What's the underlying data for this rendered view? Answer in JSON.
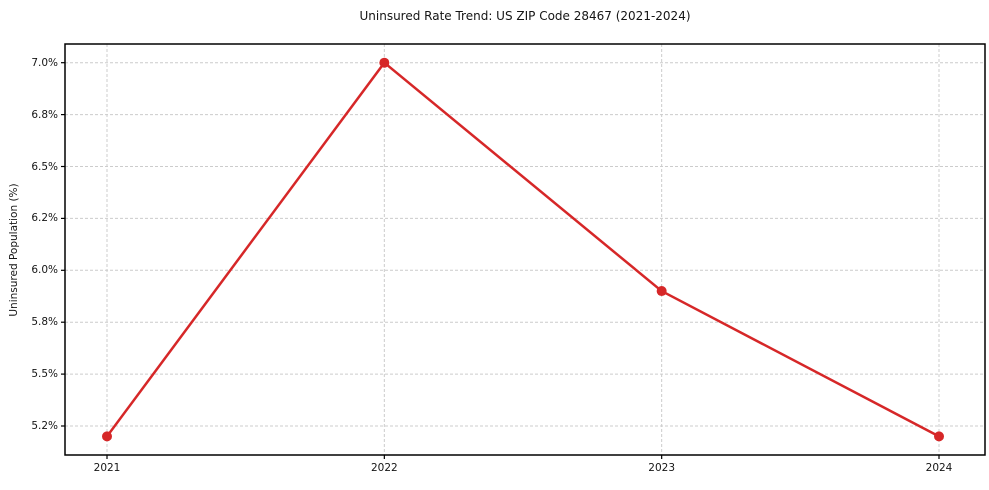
{
  "chart_data": {
    "type": "line",
    "title": "Uninsured Rate Trend: US ZIP Code 28467 (2021-2024)",
    "xlabel": "",
    "ylabel": "Uninsured Population (%)",
    "categories": [
      "2021",
      "2022",
      "2023",
      "2024"
    ],
    "values": [
      5.14,
      7.0,
      5.92,
      5.14
    ],
    "y_ticks": {
      "labels": [
        "5.2%",
        "5.5%",
        "5.8%",
        "6.0%",
        "6.2%",
        "6.5%",
        "6.8%",
        "7.0%"
      ],
      "values": [
        5.2,
        5.5,
        5.8,
        6.0,
        6.2,
        6.5,
        6.8,
        7.0
      ]
    },
    "ylim": [
      5.08,
      7.07
    ],
    "grid": true,
    "grid_style": "dashed",
    "legend_position": "none",
    "marker": "circle",
    "colors": {
      "line": "#d62728",
      "marker": "#d62728",
      "grid": "#cccccc",
      "axis": "#000000",
      "text": "#151515",
      "background": "#ffffff"
    }
  }
}
